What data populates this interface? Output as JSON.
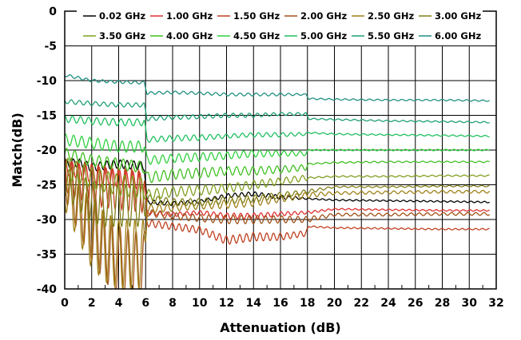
{
  "chart_data": {
    "type": "line",
    "title": "",
    "xlabel": "Attenuation (dB)",
    "ylabel": "Match(dB)",
    "xlim": [
      0,
      32
    ],
    "ylim": [
      -40,
      0
    ],
    "xticks": [
      "0",
      "2",
      "4",
      "6",
      "8",
      "10",
      "12",
      "14",
      "16",
      "18",
      "20",
      "22",
      "24",
      "26",
      "28",
      "30",
      "32"
    ],
    "yticks": [
      "0",
      "-5",
      "-10",
      "-15",
      "-20",
      "-25",
      "-30",
      "-35",
      "-40"
    ],
    "grid": true,
    "legend_position": "top",
    "series": [
      {
        "name": "0.02 GHz",
        "color": "#000000",
        "points": [
          [
            0,
            -22.0
          ],
          [
            1,
            -21.8
          ],
          [
            2,
            -22.5
          ],
          [
            3,
            -22.2
          ],
          [
            4,
            -22.0
          ],
          [
            5.9,
            -22.3
          ],
          [
            6.1,
            -27.5
          ],
          [
            8,
            -27.7
          ],
          [
            10,
            -27.4
          ],
          [
            12,
            -26.6
          ],
          [
            14,
            -26.3
          ],
          [
            16,
            -26.8
          ],
          [
            18,
            -27.0
          ],
          [
            20,
            -27.2
          ],
          [
            24,
            -27.3
          ],
          [
            28,
            -27.4
          ],
          [
            31.5,
            -27.5
          ]
        ],
        "amp": [
          0.6,
          0.6,
          0.6,
          0.6,
          0.6,
          0.6,
          0.3,
          0.3,
          0.2,
          0.3,
          0.3,
          0.3,
          0.1,
          0.1,
          0.1,
          0.1,
          0.1
        ],
        "period": 0.5
      },
      {
        "name": "1.00 GHz",
        "color": "#e03030",
        "points": [
          [
            0,
            -22.5
          ],
          [
            2,
            -23.5
          ],
          [
            4,
            -24.0
          ],
          [
            5.9,
            -24.5
          ],
          [
            6.1,
            -29.0
          ],
          [
            8,
            -29.3
          ],
          [
            10,
            -29.0
          ],
          [
            12,
            -29.5
          ],
          [
            14,
            -29.5
          ],
          [
            16,
            -29.2
          ],
          [
            18,
            -29.0
          ],
          [
            20,
            -28.5
          ],
          [
            24,
            -28.6
          ],
          [
            28,
            -28.7
          ],
          [
            31.5,
            -28.7
          ]
        ],
        "amp": [
          1.0,
          1.2,
          1.2,
          1.2,
          0.3,
          0.3,
          0.3,
          0.4,
          0.4,
          0.3,
          0.2,
          0.1,
          0.1,
          0.1,
          0.1
        ],
        "period": 0.5
      },
      {
        "name": "1.50 GHz",
        "color": "#c04020",
        "points": [
          [
            0,
            -23.5
          ],
          [
            2,
            -25.0
          ],
          [
            4,
            -25.5
          ],
          [
            5.9,
            -26.0
          ],
          [
            6.1,
            -30.5
          ],
          [
            8,
            -31.0
          ],
          [
            10,
            -31.5
          ],
          [
            12,
            -33.0
          ],
          [
            14,
            -32.5
          ],
          [
            16,
            -32.5
          ],
          [
            17.9,
            -32.0
          ],
          [
            18.1,
            -31.0
          ],
          [
            20,
            -31.2
          ],
          [
            24,
            -31.3
          ],
          [
            28,
            -31.4
          ],
          [
            31.5,
            -31.4
          ]
        ],
        "amp": [
          2.5,
          3.0,
          3.0,
          3.0,
          0.5,
          0.5,
          0.5,
          0.6,
          0.6,
          0.5,
          0.4,
          0.1,
          0.1,
          0.1,
          0.1,
          0.1
        ],
        "period": 0.5
      },
      {
        "name": "2.00 GHz",
        "color": "#a05018",
        "points": [
          [
            0,
            -24.0
          ],
          [
            1,
            -28.0
          ],
          [
            2,
            -31.0
          ],
          [
            3,
            -34.0
          ],
          [
            4,
            -36.0
          ],
          [
            5.9,
            -37.0
          ],
          [
            6.1,
            -29.0
          ],
          [
            8,
            -29.5
          ],
          [
            10,
            -29.8
          ],
          [
            12,
            -30.0
          ],
          [
            14,
            -30.0
          ],
          [
            16,
            -30.0
          ],
          [
            18,
            -30.0
          ],
          [
            20,
            -29.3
          ],
          [
            24,
            -29.3
          ],
          [
            28,
            -29.2
          ],
          [
            31.5,
            -29.2
          ]
        ],
        "amp": [
          3.0,
          4.0,
          5.0,
          5.0,
          5.0,
          5.0,
          0.5,
          0.5,
          0.5,
          0.6,
          0.6,
          0.5,
          0.4,
          0.2,
          0.2,
          0.2,
          0.2
        ],
        "period": 0.6
      },
      {
        "name": "2.50 GHz",
        "color": "#a08018",
        "points": [
          [
            0,
            -25.5
          ],
          [
            1,
            -29.0
          ],
          [
            2,
            -32.0
          ],
          [
            3,
            -34.0
          ],
          [
            4,
            -35.0
          ],
          [
            5.9,
            -35.0
          ],
          [
            6.1,
            -28.5
          ],
          [
            8,
            -28.3
          ],
          [
            10,
            -28.0
          ],
          [
            12,
            -27.8
          ],
          [
            14,
            -27.5
          ],
          [
            16,
            -27.0
          ],
          [
            18,
            -26.5
          ],
          [
            20,
            -26.2
          ],
          [
            24,
            -26.1
          ],
          [
            28,
            -26.0
          ],
          [
            31.5,
            -26.0
          ]
        ],
        "amp": [
          3.0,
          4.0,
          5.0,
          5.0,
          5.0,
          5.0,
          0.6,
          0.5,
          0.5,
          0.6,
          0.6,
          0.5,
          0.4,
          0.2,
          0.2,
          0.2,
          0.2
        ],
        "period": 0.6
      },
      {
        "name": "3.00 GHz",
        "color": "#808018",
        "points": [
          [
            0,
            -24.5
          ],
          [
            1,
            -26.0
          ],
          [
            2,
            -27.5
          ],
          [
            3,
            -28.0
          ],
          [
            4,
            -28.0
          ],
          [
            5.9,
            -28.0
          ],
          [
            6.1,
            -27.0
          ],
          [
            8,
            -27.5
          ],
          [
            10,
            -27.5
          ],
          [
            12,
            -27.2
          ],
          [
            14,
            -27.0
          ],
          [
            16,
            -26.5
          ],
          [
            18,
            -26.0
          ],
          [
            20,
            -25.3
          ],
          [
            24,
            -25.3
          ],
          [
            28,
            -25.2
          ],
          [
            31.5,
            -25.2
          ]
        ],
        "amp": [
          2.0,
          2.5,
          3.0,
          3.0,
          3.0,
          3.0,
          0.6,
          0.5,
          0.5,
          0.5,
          0.5,
          0.4,
          0.3,
          0.1,
          0.1,
          0.1,
          0.1
        ],
        "period": 0.6
      },
      {
        "name": "3.50 GHz",
        "color": "#80a020",
        "points": [
          [
            0,
            -22.5
          ],
          [
            2,
            -24.0
          ],
          [
            4,
            -25.0
          ],
          [
            5.9,
            -25.5
          ],
          [
            6.1,
            -26.5
          ],
          [
            8,
            -26.0
          ],
          [
            10,
            -25.8
          ],
          [
            12,
            -25.5
          ],
          [
            14,
            -25.0
          ],
          [
            16,
            -24.5
          ],
          [
            17.9,
            -24.0
          ],
          [
            18.1,
            -24.0
          ],
          [
            20,
            -23.8
          ],
          [
            24,
            -23.8
          ],
          [
            28,
            -23.7
          ],
          [
            31.5,
            -23.7
          ]
        ],
        "amp": [
          1.5,
          1.5,
          1.5,
          1.5,
          0.8,
          0.7,
          0.7,
          0.6,
          0.6,
          0.5,
          0.4,
          0.1,
          0.1,
          0.1,
          0.1,
          0.1
        ],
        "period": 0.6
      },
      {
        "name": "4.00 GHz",
        "color": "#40c020",
        "points": [
          [
            0,
            -20.5
          ],
          [
            2,
            -21.5
          ],
          [
            4,
            -22.0
          ],
          [
            5.9,
            -22.5
          ],
          [
            6.1,
            -24.0
          ],
          [
            8,
            -23.5
          ],
          [
            10,
            -23.3
          ],
          [
            12,
            -23.0
          ],
          [
            14,
            -23.0
          ],
          [
            16,
            -22.8
          ],
          [
            17.9,
            -22.5
          ],
          [
            18.1,
            -22.0
          ],
          [
            20,
            -21.8
          ],
          [
            24,
            -21.7
          ],
          [
            28,
            -21.7
          ],
          [
            31.5,
            -21.7
          ]
        ],
        "amp": [
          0.8,
          0.8,
          0.8,
          0.8,
          0.8,
          0.7,
          0.7,
          0.6,
          0.6,
          0.5,
          0.4,
          0.1,
          0.1,
          0.1,
          0.1,
          0.1
        ],
        "period": 0.6
      },
      {
        "name": "4.50 GHz",
        "color": "#30d040",
        "points": [
          [
            0,
            -18.5
          ],
          [
            2,
            -19.0
          ],
          [
            4,
            -19.5
          ],
          [
            5.9,
            -19.5
          ],
          [
            6.1,
            -21.5
          ],
          [
            8,
            -21.2
          ],
          [
            10,
            -21.0
          ],
          [
            12,
            -20.8
          ],
          [
            14,
            -20.5
          ],
          [
            16,
            -20.5
          ],
          [
            17.9,
            -20.5
          ],
          [
            18.1,
            -20.0
          ],
          [
            20,
            -20.0
          ],
          [
            24,
            -20.0
          ],
          [
            28,
            -20.0
          ],
          [
            31.5,
            -20.0
          ]
        ],
        "amp": [
          0.8,
          0.8,
          0.8,
          0.8,
          0.6,
          0.6,
          0.6,
          0.5,
          0.5,
          0.4,
          0.3,
          0.1,
          0.1,
          0.1,
          0.1,
          0.1
        ],
        "period": 0.6
      },
      {
        "name": "5.00 GHz",
        "color": "#20c060",
        "points": [
          [
            0,
            -15.5
          ],
          [
            2,
            -15.8
          ],
          [
            4,
            -16.0
          ],
          [
            5.9,
            -16.0
          ],
          [
            6.1,
            -18.5
          ],
          [
            8,
            -18.3
          ],
          [
            10,
            -18.2
          ],
          [
            12,
            -18.0
          ],
          [
            14,
            -17.8
          ],
          [
            16,
            -17.8
          ],
          [
            17.9,
            -17.7
          ],
          [
            18.1,
            -17.5
          ],
          [
            20,
            -17.7
          ],
          [
            24,
            -17.8
          ],
          [
            28,
            -17.9
          ],
          [
            31.5,
            -18.0
          ]
        ],
        "amp": [
          0.5,
          0.5,
          0.5,
          0.5,
          0.4,
          0.4,
          0.4,
          0.3,
          0.3,
          0.3,
          0.2,
          0.1,
          0.1,
          0.1,
          0.1,
          0.1
        ],
        "period": 0.6
      },
      {
        "name": "5.50 GHz",
        "color": "#20a070",
        "points": [
          [
            0,
            -13.0
          ],
          [
            2,
            -13.3
          ],
          [
            4,
            -13.5
          ],
          [
            5.9,
            -13.5
          ],
          [
            6.1,
            -15.5
          ],
          [
            8,
            -15.3
          ],
          [
            10,
            -15.2
          ],
          [
            12,
            -15.0
          ],
          [
            14,
            -15.0
          ],
          [
            16,
            -14.8
          ],
          [
            17.9,
            -14.8
          ],
          [
            18.1,
            -15.5
          ],
          [
            20,
            -15.6
          ],
          [
            24,
            -15.8
          ],
          [
            28,
            -15.9
          ],
          [
            31.5,
            -16.0
          ]
        ],
        "amp": [
          0.3,
          0.3,
          0.3,
          0.3,
          0.3,
          0.3,
          0.3,
          0.3,
          0.3,
          0.2,
          0.2,
          0.1,
          0.1,
          0.1,
          0.1,
          0.1
        ],
        "period": 0.6
      },
      {
        "name": "6.00 GHz",
        "color": "#209080",
        "points": [
          [
            0,
            -9.2
          ],
          [
            1,
            -9.6
          ],
          [
            2,
            -10.0
          ],
          [
            4,
            -10.2
          ],
          [
            5.9,
            -10.3
          ],
          [
            6.1,
            -11.8
          ],
          [
            8,
            -11.7
          ],
          [
            10,
            -11.8
          ],
          [
            12,
            -12.0
          ],
          [
            14,
            -12.0
          ],
          [
            16,
            -12.0
          ],
          [
            17.9,
            -12.0
          ],
          [
            18.1,
            -12.6
          ],
          [
            20,
            -12.7
          ],
          [
            24,
            -12.8
          ],
          [
            28,
            -12.8
          ],
          [
            31.5,
            -12.9
          ]
        ],
        "amp": [
          0.2,
          0.2,
          0.2,
          0.2,
          0.2,
          0.2,
          0.2,
          0.2,
          0.2,
          0.2,
          0.2,
          0.1,
          0.1,
          0.1,
          0.1,
          0.1,
          0.1
        ],
        "period": 0.6
      }
    ]
  }
}
